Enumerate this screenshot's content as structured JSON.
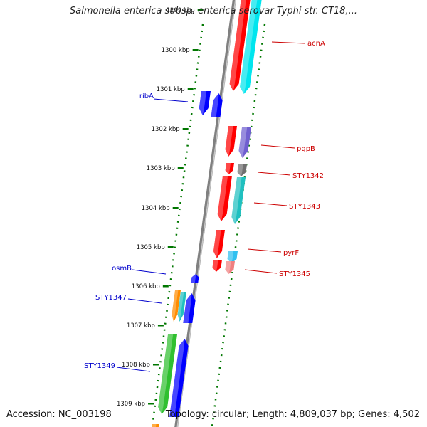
{
  "title": "Salmonella enterica subsp. enterica serovar Typhi str. CT18,...",
  "accession_text": "Accession: NC_003198",
  "stats_text": "Topology: circular; Length: 4,809,037 bp; Genes: 4,502",
  "ticks": [
    "1299 kbp",
    "1300 kbp",
    "1301 kbp",
    "1302 kbp",
    "1303 kbp",
    "1304 kbp",
    "1305 kbp",
    "1306 kbp",
    "1307 kbp",
    "1308 kbp",
    "1309 kbp"
  ],
  "colors": {
    "red": "#ff0000",
    "cyan": "#00e5ee",
    "teal": "#20c0c0",
    "blue": "#0000ff",
    "purple": "#7060d0",
    "gray": "#707070",
    "skyblue": "#30c0f0",
    "pink": "#f08080",
    "orange": "#ff8c00",
    "green": "#30c030",
    "backbone": "#808080",
    "label_right": "#cc0000",
    "label_left": "#0000cc",
    "ruler": "#007700"
  },
  "genes": [
    {
      "label": "acnA",
      "side": "right"
    },
    {
      "label": "ribA",
      "side": "left"
    },
    {
      "label": "pgpB",
      "side": "right"
    },
    {
      "label": "STY1342",
      "side": "right"
    },
    {
      "label": "STY1343",
      "side": "right"
    },
    {
      "label": "pyrF",
      "side": "right"
    },
    {
      "label": "STY1345",
      "side": "right"
    },
    {
      "label": "osmB",
      "side": "left"
    },
    {
      "label": "STY1347",
      "side": "left"
    },
    {
      "label": "STY1349",
      "side": "left"
    }
  ]
}
